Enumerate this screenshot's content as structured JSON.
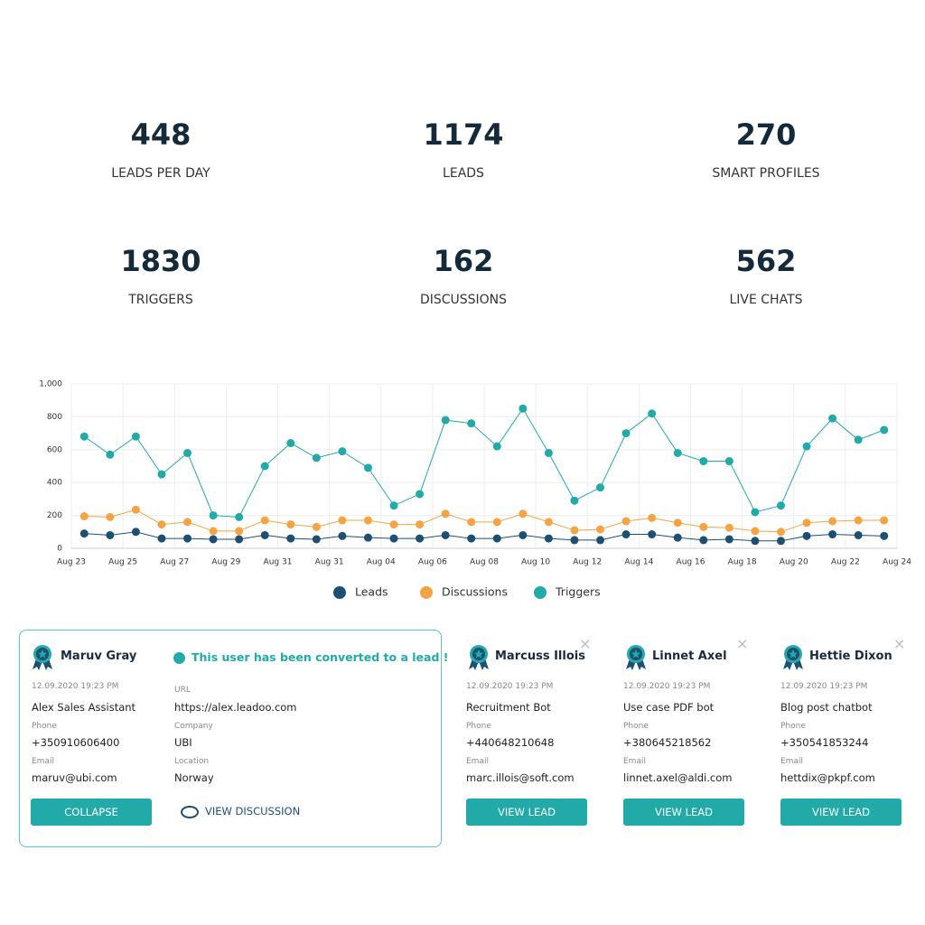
{
  "stats": [
    {
      "value": 448,
      "label": "LEADS PER DAY"
    },
    {
      "value": 1174,
      "label": "LEADS"
    },
    {
      "value": 270,
      "label": "SMART PROFILES"
    },
    {
      "value": 1830,
      "label": "TRIGGERS"
    },
    {
      "value": 162,
      "label": "DISCUSSIONS"
    },
    {
      "value": 562,
      "label": "LIVE CHATS"
    }
  ],
  "chart_data": {
    "type": "line",
    "grid": true,
    "legend": "bottom",
    "xticks": [
      "Aug 23",
      "Aug 25",
      "Aug 27",
      "Aug 29",
      "Aug 31",
      "Aug 31",
      "Aug 04",
      "Aug 06",
      "Aug 08",
      "Aug 10",
      "Aug 12",
      "Aug 14",
      "Aug 16",
      "Aug 18",
      "Aug 20",
      "Aug 22",
      "Aug 24"
    ],
    "ylim": [
      0,
      1000
    ],
    "yticks": [
      0,
      200,
      400,
      600,
      800,
      {
        "value": 1000,
        "label": "1,000"
      }
    ],
    "series": [
      {
        "name": "Leads",
        "color": "#1d4f73",
        "values": [
          90,
          80,
          100,
          60,
          60,
          55,
          55,
          80,
          60,
          55,
          75,
          65,
          60,
          60,
          80,
          60,
          60,
          80,
          60,
          50,
          50,
          85,
          85,
          65,
          50,
          55,
          45,
          45,
          75,
          85,
          80,
          75
        ]
      },
      {
        "name": "Discussions",
        "color": "#f5a444",
        "values": [
          195,
          190,
          235,
          145,
          160,
          105,
          105,
          170,
          145,
          130,
          170,
          170,
          145,
          145,
          210,
          160,
          160,
          210,
          160,
          110,
          115,
          165,
          185,
          155,
          130,
          125,
          105,
          100,
          155,
          165,
          170,
          170
        ]
      },
      {
        "name": "Triggers",
        "color": "#22aaa9",
        "values": [
          680,
          570,
          680,
          450,
          580,
          200,
          190,
          500,
          640,
          550,
          590,
          490,
          260,
          330,
          780,
          760,
          620,
          850,
          580,
          290,
          370,
          700,
          820,
          580,
          530,
          530,
          220,
          260,
          620,
          790,
          660,
          720
        ]
      }
    ]
  },
  "lead_card": {
    "name": "Maruv Gray",
    "date": "12.09.2020 19:23 PM",
    "source": "Alex Sales Assistant",
    "phone_label": "Phone",
    "phone": "+350910606400",
    "email_label": "Email",
    "email": "maruv@ubi.com",
    "converted": "This user has been converted to a lead !",
    "url_label": "URL",
    "url": "https://alex.leadoo.com",
    "company_label": "Company",
    "company": "UBI",
    "location_label": "Location",
    "location": "Norway",
    "collapse": "COLLAPSE",
    "view_discussion": "VIEW DISCUSSION"
  },
  "cards": [
    {
      "name": "Marcuss Illois",
      "date": "12.09.2020 19:23 PM",
      "bot": "Recruitment Bot",
      "phone_label": "Phone",
      "phone": "+440648210648",
      "email_label": "Email",
      "email": "marc.illois@soft.com",
      "button": "VIEW LEAD"
    },
    {
      "name": "Linnet Axel",
      "date": "12.09.2020 19:23 PM",
      "bot": "Use case PDF bot",
      "phone_label": "Phone",
      "phone": "+380645218562",
      "email_label": "Email",
      "email": "linnet.axel@aldi.com",
      "button": "VIEW LEAD"
    },
    {
      "name": "Hettie Dixon",
      "date": "12.09.2020 19:23 PM",
      "bot": "Blog post chatbot",
      "phone_label": "Phone",
      "phone": "+350541853244",
      "email_label": "Email",
      "email": "hettdix@pkpf.com",
      "button": "VIEW LEAD"
    }
  ]
}
